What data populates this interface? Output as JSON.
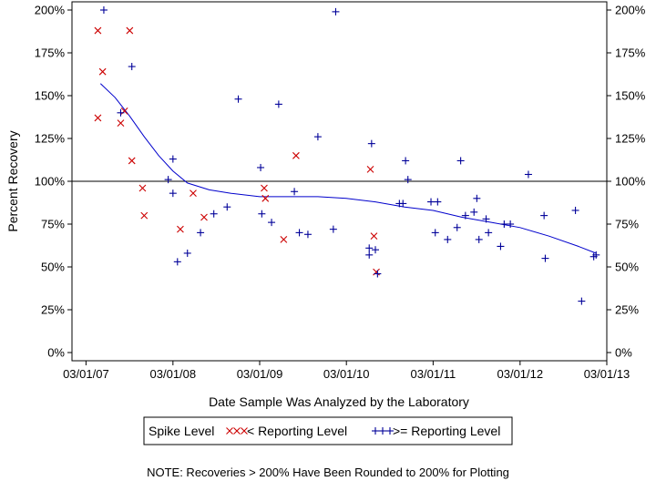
{
  "chart_data": {
    "type": "scatter",
    "xlabel": "Date Sample Was Analyzed by the Laboratory",
    "ylabel": "Percent Recovery",
    "note": "NOTE: Recoveries > 200% Have Been Rounded to 200% for Plotting",
    "xlim": [
      "2007-01-01",
      "2013-03-01"
    ],
    "ylim": [
      0,
      200
    ],
    "x_ticks": [
      {
        "date": "2007-03-01",
        "label": "03/01/07"
      },
      {
        "date": "2008-03-01",
        "label": "03/01/08"
      },
      {
        "date": "2009-03-01",
        "label": "03/01/09"
      },
      {
        "date": "2010-03-01",
        "label": "03/01/10"
      },
      {
        "date": "2011-03-01",
        "label": "03/01/11"
      },
      {
        "date": "2012-03-01",
        "label": "03/01/12"
      },
      {
        "date": "2013-03-01",
        "label": "03/01/13"
      }
    ],
    "y_ticks": [
      {
        "value": 0,
        "label": "0%"
      },
      {
        "value": 25,
        "label": "25%"
      },
      {
        "value": 50,
        "label": "50%"
      },
      {
        "value": 75,
        "label": "75%"
      },
      {
        "value": 100,
        "label": "100%"
      },
      {
        "value": 125,
        "label": "125%"
      },
      {
        "value": 150,
        "label": "150%"
      },
      {
        "value": 175,
        "label": "175%"
      },
      {
        "value": 200,
        "label": "200%"
      }
    ],
    "reference_line": 100,
    "legend": {
      "title": "Spike Level",
      "placement": "bottom",
      "entries": [
        {
          "label": "< Reporting Level",
          "marker": "x",
          "color": "#cc0000"
        },
        {
          "label": ">= Reporting Level",
          "marker": "+",
          "color": "#000099"
        }
      ]
    },
    "series": [
      {
        "name": "< Reporting Level",
        "marker": "x",
        "color": "#cc0000",
        "points": [
          {
            "x": "2007-04-20",
            "y": 188
          },
          {
            "x": "2007-04-20",
            "y": 137
          },
          {
            "x": "2007-05-10",
            "y": 164
          },
          {
            "x": "2007-07-25",
            "y": 134
          },
          {
            "x": "2007-08-10",
            "y": 141
          },
          {
            "x": "2007-09-01",
            "y": 188
          },
          {
            "x": "2007-09-10",
            "y": 112
          },
          {
            "x": "2007-10-25",
            "y": 96
          },
          {
            "x": "2007-11-01",
            "y": 80
          },
          {
            "x": "2008-04-01",
            "y": 72
          },
          {
            "x": "2008-05-25",
            "y": 93
          },
          {
            "x": "2008-07-10",
            "y": 79
          },
          {
            "x": "2009-03-20",
            "y": 96
          },
          {
            "x": "2009-03-25",
            "y": 90
          },
          {
            "x": "2009-06-10",
            "y": 66
          },
          {
            "x": "2009-08-01",
            "y": 115
          },
          {
            "x": "2010-06-10",
            "y": 107
          },
          {
            "x": "2010-06-25",
            "y": 68
          },
          {
            "x": "2010-07-05",
            "y": 47
          }
        ]
      },
      {
        "name": ">= Reporting Level",
        "marker": "+",
        "color": "#000099",
        "points": [
          {
            "x": "2007-05-15",
            "y": 200
          },
          {
            "x": "2007-07-25",
            "y": 140
          },
          {
            "x": "2007-09-10",
            "y": 167
          },
          {
            "x": "2008-02-10",
            "y": 101
          },
          {
            "x": "2008-03-01",
            "y": 93
          },
          {
            "x": "2008-03-01",
            "y": 113
          },
          {
            "x": "2008-03-20",
            "y": 53
          },
          {
            "x": "2008-05-01",
            "y": 58
          },
          {
            "x": "2008-06-25",
            "y": 70
          },
          {
            "x": "2008-08-20",
            "y": 81
          },
          {
            "x": "2008-10-15",
            "y": 85
          },
          {
            "x": "2008-12-01",
            "y": 148
          },
          {
            "x": "2009-03-05",
            "y": 108
          },
          {
            "x": "2009-03-10",
            "y": 81
          },
          {
            "x": "2009-04-20",
            "y": 76
          },
          {
            "x": "2009-05-20",
            "y": 145
          },
          {
            "x": "2009-07-25",
            "y": 94
          },
          {
            "x": "2009-08-15",
            "y": 70
          },
          {
            "x": "2009-09-20",
            "y": 69
          },
          {
            "x": "2009-11-01",
            "y": 126
          },
          {
            "x": "2010-01-05",
            "y": 72
          },
          {
            "x": "2010-01-15",
            "y": 199
          },
          {
            "x": "2010-06-05",
            "y": 61
          },
          {
            "x": "2010-06-05",
            "y": 57
          },
          {
            "x": "2010-06-15",
            "y": 122
          },
          {
            "x": "2010-07-01",
            "y": 60
          },
          {
            "x": "2010-07-10",
            "y": 46
          },
          {
            "x": "2010-10-10",
            "y": 87
          },
          {
            "x": "2010-10-25",
            "y": 87
          },
          {
            "x": "2010-11-05",
            "y": 112
          },
          {
            "x": "2010-11-15",
            "y": 101
          },
          {
            "x": "2011-02-20",
            "y": 88
          },
          {
            "x": "2011-03-10",
            "y": 70
          },
          {
            "x": "2011-03-20",
            "y": 88
          },
          {
            "x": "2011-05-01",
            "y": 66
          },
          {
            "x": "2011-06-10",
            "y": 73
          },
          {
            "x": "2011-06-25",
            "y": 112
          },
          {
            "x": "2011-07-15",
            "y": 80
          },
          {
            "x": "2011-08-20",
            "y": 82
          },
          {
            "x": "2011-09-01",
            "y": 90
          },
          {
            "x": "2011-09-10",
            "y": 66
          },
          {
            "x": "2011-10-10",
            "y": 78
          },
          {
            "x": "2011-10-20",
            "y": 70
          },
          {
            "x": "2011-12-10",
            "y": 62
          },
          {
            "x": "2011-12-25",
            "y": 75
          },
          {
            "x": "2012-01-20",
            "y": 75
          },
          {
            "x": "2012-04-05",
            "y": 104
          },
          {
            "x": "2012-06-10",
            "y": 80
          },
          {
            "x": "2012-06-15",
            "y": 55
          },
          {
            "x": "2012-10-20",
            "y": 83
          },
          {
            "x": "2012-11-15",
            "y": 30
          },
          {
            "x": "2013-01-05",
            "y": 56
          },
          {
            "x": "2013-01-15",
            "y": 57
          }
        ]
      }
    ],
    "trend": {
      "color": "#0000cc",
      "points": [
        {
          "x": "2007-05-01",
          "y": 157
        },
        {
          "x": "2007-07-01",
          "y": 149
        },
        {
          "x": "2007-09-01",
          "y": 138
        },
        {
          "x": "2007-11-01",
          "y": 126
        },
        {
          "x": "2008-01-01",
          "y": 115
        },
        {
          "x": "2008-03-01",
          "y": 106
        },
        {
          "x": "2008-05-01",
          "y": 99
        },
        {
          "x": "2008-08-01",
          "y": 95
        },
        {
          "x": "2008-11-01",
          "y": 93
        },
        {
          "x": "2009-03-01",
          "y": 91
        },
        {
          "x": "2009-07-01",
          "y": 91
        },
        {
          "x": "2009-11-01",
          "y": 91
        },
        {
          "x": "2010-03-01",
          "y": 90
        },
        {
          "x": "2010-07-01",
          "y": 88
        },
        {
          "x": "2010-11-01",
          "y": 85
        },
        {
          "x": "2011-03-01",
          "y": 83
        },
        {
          "x": "2011-07-01",
          "y": 79
        },
        {
          "x": "2011-11-01",
          "y": 76
        },
        {
          "x": "2012-03-01",
          "y": 73
        },
        {
          "x": "2012-07-01",
          "y": 68
        },
        {
          "x": "2012-11-01",
          "y": 62
        },
        {
          "x": "2013-01-15",
          "y": 58
        }
      ]
    }
  }
}
